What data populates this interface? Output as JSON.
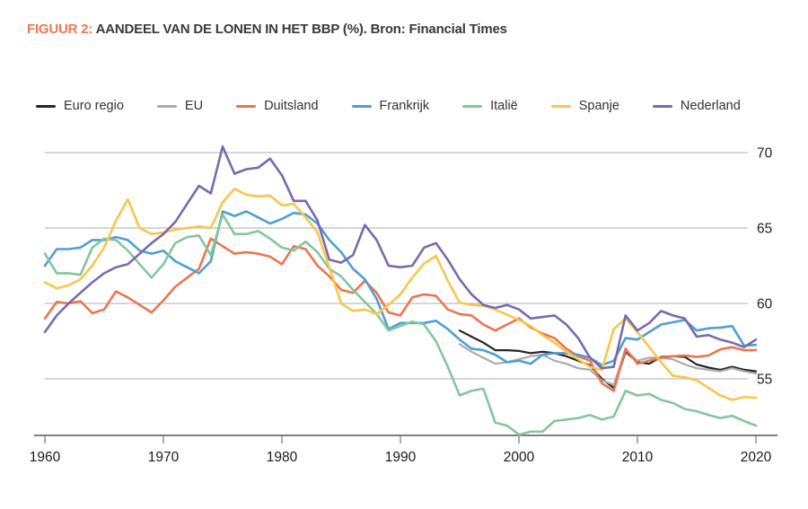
{
  "figure": {
    "title_prefix": "FIGUUR 2:",
    "title_text": " AANDEEL VAN DE LONEN IN HET BBP (%). Bron: Financial Times"
  },
  "colors": {
    "accent_title": "#f0774b",
    "grid": "#bdbdbd",
    "axis": "#7f7f7f",
    "tick_text": "#1a1a1a"
  },
  "chart_data": {
    "type": "line",
    "title": "Aandeel van de lonen in het BBP (%)",
    "source": "Financial Times",
    "xlabel": "",
    "ylabel": "",
    "x_ticks": [
      1960,
      1970,
      1980,
      1990,
      2000,
      2010,
      2020
    ],
    "y_ticks": [
      55,
      60,
      65,
      70
    ],
    "xlim": [
      1960,
      2020
    ],
    "ylim": [
      51.25,
      70.5
    ],
    "grid": "horizontal",
    "legend_position": "top",
    "series": [
      {
        "name": "Euro regio",
        "color": "#262626",
        "width": 2.2,
        "start_year": 1995,
        "values": [
          58.2,
          57.8,
          57.4,
          56.9,
          56.9,
          56.85,
          56.7,
          56.8,
          56.7,
          56.5,
          56.2,
          55.9,
          55.0,
          54.4,
          56.8,
          56.1,
          56.0,
          56.45,
          56.5,
          56.45,
          55.95,
          55.75,
          55.6,
          55.8,
          55.6,
          55.5
        ]
      },
      {
        "name": "EU",
        "color": "#ababab",
        "width": 2.2,
        "start_year": 1995,
        "values": [
          57.3,
          56.8,
          56.4,
          56.0,
          56.1,
          56.3,
          56.5,
          56.6,
          56.2,
          56.0,
          55.7,
          55.6,
          54.9,
          54.6,
          56.9,
          56.2,
          56.4,
          56.4,
          56.3,
          55.95,
          55.7,
          55.6,
          55.5,
          55.7,
          55.5,
          55.35
        ]
      },
      {
        "name": "Duitsland",
        "color": "#ee744d",
        "width": 2.6,
        "start_year": 1960,
        "values": [
          59.0,
          60.1,
          60.0,
          60.15,
          59.35,
          59.6,
          60.8,
          60.4,
          59.9,
          59.4,
          60.2,
          61.1,
          61.7,
          62.3,
          64.3,
          63.8,
          63.3,
          63.4,
          63.3,
          63.1,
          62.6,
          63.8,
          63.6,
          62.5,
          61.8,
          60.9,
          60.7,
          61.5,
          60.7,
          59.4,
          59.2,
          60.4,
          60.6,
          60.5,
          59.6,
          59.3,
          59.2,
          58.6,
          58.2,
          58.6,
          59.0,
          58.4,
          58.0,
          57.7,
          57.0,
          56.5,
          56.2,
          54.7,
          54.2,
          57.0,
          56.0,
          56.2,
          56.4,
          56.5,
          56.55,
          56.45,
          56.55,
          56.95,
          57.1,
          56.9,
          56.9
        ]
      },
      {
        "name": "Frankrijk",
        "color": "#4d9fd8",
        "width": 2.6,
        "start_year": 1960,
        "values": [
          62.5,
          63.6,
          63.6,
          63.7,
          64.2,
          64.2,
          64.4,
          64.2,
          63.5,
          63.3,
          63.5,
          62.8,
          62.4,
          62.0,
          62.8,
          66.1,
          65.8,
          66.1,
          65.7,
          65.3,
          65.6,
          66.0,
          65.9,
          65.3,
          64.2,
          63.4,
          62.3,
          61.6,
          60.3,
          58.3,
          58.7,
          58.7,
          58.7,
          58.85,
          58.3,
          57.6,
          57.0,
          56.9,
          56.6,
          56.1,
          56.2,
          56.0,
          56.6,
          56.7,
          56.7,
          56.6,
          56.4,
          55.9,
          56.2,
          57.7,
          57.6,
          58.1,
          58.6,
          58.75,
          58.9,
          58.2,
          58.35,
          58.4,
          58.5,
          57.2,
          57.25
        ]
      },
      {
        "name": "Italië",
        "color": "#84c79b",
        "width": 2.6,
        "start_year": 1960,
        "values": [
          63.3,
          62.0,
          62.0,
          61.9,
          63.7,
          64.3,
          64.2,
          63.5,
          62.6,
          61.7,
          62.6,
          64.0,
          64.4,
          64.5,
          63.2,
          65.9,
          64.6,
          64.6,
          64.8,
          64.3,
          63.7,
          63.5,
          64.1,
          63.4,
          62.3,
          61.8,
          60.9,
          60.1,
          59.3,
          58.2,
          58.5,
          58.8,
          58.6,
          57.5,
          55.8,
          53.9,
          54.2,
          54.35,
          52.1,
          51.9,
          51.3,
          51.5,
          51.5,
          52.2,
          52.3,
          52.4,
          52.6,
          52.3,
          52.5,
          54.2,
          53.9,
          54.0,
          53.6,
          53.4,
          53.0,
          52.85,
          52.6,
          52.4,
          52.55,
          52.2,
          51.9
        ]
      },
      {
        "name": "Spanje",
        "color": "#f9c64a",
        "width": 2.6,
        "start_year": 1960,
        "values": [
          61.4,
          61.0,
          61.2,
          61.6,
          62.5,
          63.7,
          65.5,
          66.9,
          65.0,
          64.6,
          64.7,
          64.9,
          65.0,
          65.1,
          65.0,
          66.7,
          67.6,
          67.2,
          67.1,
          67.15,
          66.5,
          66.6,
          65.7,
          64.7,
          62.4,
          60.0,
          59.5,
          59.6,
          59.3,
          59.9,
          60.6,
          61.7,
          62.65,
          63.15,
          61.5,
          60.05,
          59.9,
          59.85,
          59.6,
          59.25,
          58.9,
          58.5,
          57.9,
          57.4,
          56.8,
          56.3,
          55.8,
          55.6,
          58.3,
          59.0,
          58.1,
          57.1,
          56.1,
          55.2,
          55.1,
          54.9,
          54.4,
          53.9,
          53.6,
          53.8,
          53.75
        ]
      },
      {
        "name": "Nederland",
        "color": "#7a69af",
        "width": 2.6,
        "start_year": 1960,
        "values": [
          58.1,
          59.2,
          60.0,
          60.7,
          61.4,
          62.0,
          62.4,
          62.6,
          63.3,
          64.0,
          64.6,
          65.4,
          66.6,
          67.8,
          67.3,
          70.4,
          68.6,
          68.9,
          69.0,
          69.6,
          68.5,
          66.8,
          66.8,
          65.5,
          62.9,
          62.7,
          63.2,
          65.2,
          64.2,
          62.5,
          62.4,
          62.5,
          63.7,
          64.0,
          62.9,
          61.6,
          60.6,
          59.9,
          59.7,
          59.9,
          59.6,
          59.0,
          59.1,
          59.2,
          58.6,
          57.7,
          56.4,
          55.7,
          55.8,
          59.2,
          58.2,
          58.7,
          59.5,
          59.2,
          59.0,
          57.8,
          57.9,
          57.6,
          57.4,
          57.1,
          57.6
        ]
      }
    ]
  }
}
